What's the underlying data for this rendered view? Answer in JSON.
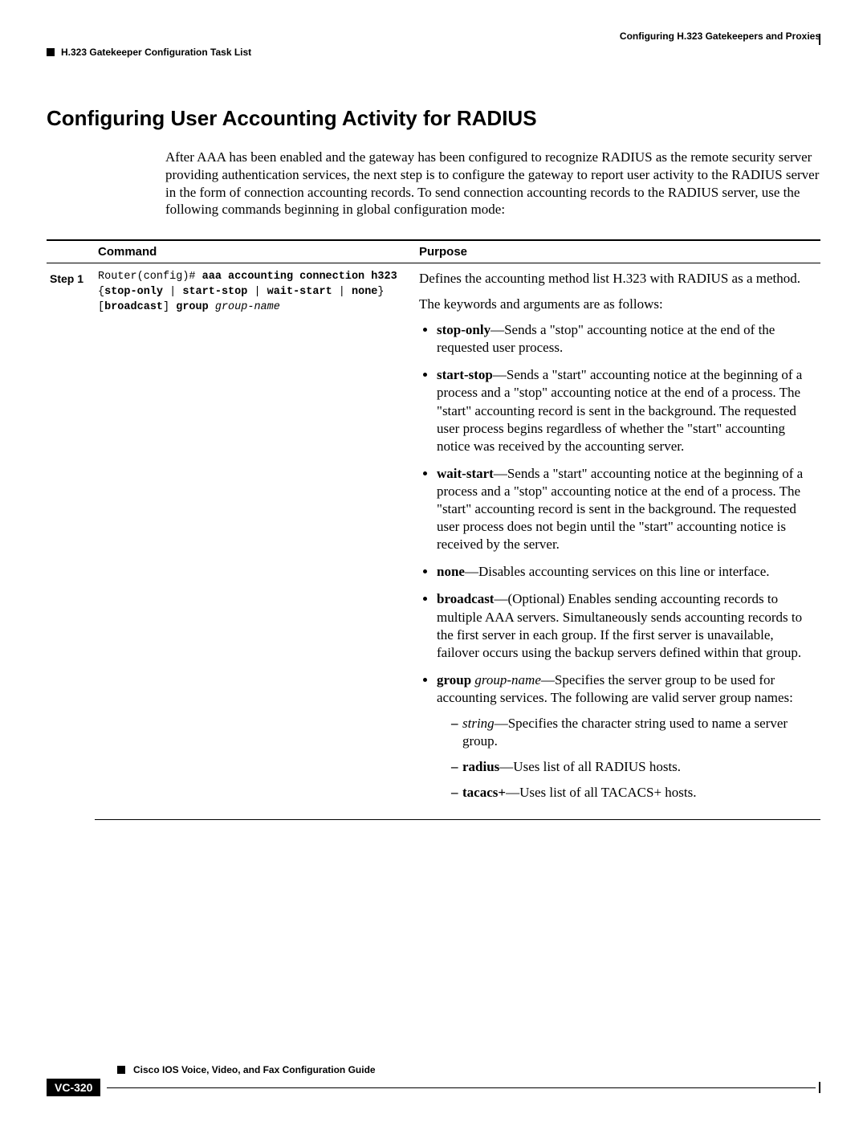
{
  "header": {
    "chapter": "Configuring H.323 Gatekeepers and Proxies",
    "section": "H.323 Gatekeeper Configuration Task List"
  },
  "title": "Configuring User Accounting Activity for RADIUS",
  "intro": "After AAA has been enabled and the gateway has been configured to recognize RADIUS as the remote security server providing authentication services, the next step is to configure the gateway to report user activity to the RADIUS server in the form of connection accounting records. To send connection accounting records to the RADIUS server, use the following commands beginning in global configuration mode:",
  "table": {
    "head_command": "Command",
    "head_purpose": "Purpose",
    "step_label": "Step 1",
    "cmd_prompt": "Router(config)# ",
    "cmd_bold1": "aaa accounting connection h323",
    "cmd_line2_open": "{",
    "cmd_kw_stoponly": "stop-only",
    "cmd_pipe": " | ",
    "cmd_kw_startstop": "start-stop",
    "cmd_kw_waitstart": "wait-start",
    "cmd_kw_none": "none",
    "cmd_line2_close": "}",
    "cmd_line3_bopen": "[",
    "cmd_kw_broadcast": "broadcast",
    "cmd_line3_bclose": "] ",
    "cmd_kw_group": "group",
    "cmd_arg_groupname": " group-name",
    "purpose_p1": "Defines the accounting method list H.323 with RADIUS as a method.",
    "purpose_p2": "The keywords and arguments are as follows:",
    "kw": {
      "stoponly_b": "stop-only",
      "stoponly_t": "—Sends a \"stop\" accounting notice at the end of the requested user process.",
      "startstop_b": "start-stop",
      "startstop_t": "—Sends a \"start\" accounting notice at the beginning of a process and a \"stop\" accounting notice at the end of a process. The \"start\" accounting record is sent in the background. The requested user process begins regardless of whether the \"start\" accounting notice was received by the accounting server.",
      "waitstart_b": "wait-start",
      "waitstart_t": "—Sends a \"start\" accounting notice at the beginning of a process and a \"stop\" accounting notice at the end of a process. The \"start\" accounting record is sent in the background. The requested user process does not begin until the \"start\" accounting notice is received by the server.",
      "none_b": "none",
      "none_t": "—Disables accounting services on this line or interface.",
      "broadcast_b": "broadcast",
      "broadcast_t": "—(Optional) Enables sending accounting records to multiple AAA servers. Simultaneously sends accounting records to the first server in each group. If the first server is unavailable, failover occurs using the backup servers defined within that group.",
      "group_b": "group",
      "group_i": " group-name",
      "group_t": "—Specifies the server group to be used for accounting services. The following are valid server group names:",
      "sub_string_i": "string",
      "sub_string_t": "—Specifies the character string used to name a server group.",
      "sub_radius_b": "radius",
      "sub_radius_t": "—Uses list of all RADIUS hosts.",
      "sub_tacacs_b": "tacacs+",
      "sub_tacacs_t": "—Uses list of all TACACS+ hosts."
    }
  },
  "footer": {
    "guide": "Cisco IOS Voice, Video, and Fax Configuration Guide",
    "page": "VC-320"
  }
}
